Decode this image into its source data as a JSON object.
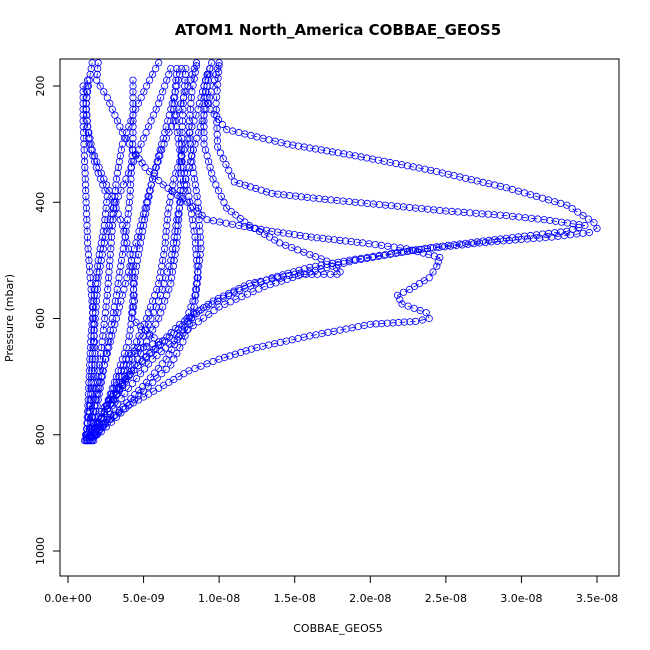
{
  "chart_data": {
    "type": "scatter",
    "title": "ATOM1 North_America COBBAE_GEOS5",
    "xlabel": "COBBAE_GEOS5",
    "ylabel": "Pressure (mbar)",
    "xlim": [
      0,
      3.6e-08
    ],
    "ylim": [
      1040,
      160
    ],
    "y_reversed": true,
    "x_ticks": [
      {
        "value": 0,
        "label": "0.0e+00"
      },
      {
        "value": 5e-09,
        "label": "5.0e-09"
      },
      {
        "value": 1e-08,
        "label": "1.0e-08"
      },
      {
        "value": 1.5e-08,
        "label": "1.5e-08"
      },
      {
        "value": 2e-08,
        "label": "2.0e-08"
      },
      {
        "value": 2.5e-08,
        "label": "2.5e-08"
      },
      {
        "value": 3e-08,
        "label": "3.0e-08"
      },
      {
        "value": 3.5e-08,
        "label": "3.5e-08"
      }
    ],
    "y_ticks": [
      {
        "value": 200,
        "label": "200"
      },
      {
        "value": 400,
        "label": "400"
      },
      {
        "value": 600,
        "label": "600"
      },
      {
        "value": 800,
        "label": "800"
      },
      {
        "value": 1000,
        "label": "1000"
      }
    ],
    "marker": "open-circle",
    "color": "#0000ff",
    "grid": false,
    "series": [
      {
        "x": [
          2e-09,
          1.9e-09,
          2.6e-09,
          3.1e-09,
          3.6e-09,
          4.3e-09,
          5.1e-09,
          6.3e-09,
          7.9e-09,
          9.2e-09,
          1.13e-08,
          1.35e-08,
          1.61e-08,
          1.95e-08,
          2.24e-08,
          2.46e-08,
          2.44e-08,
          2.39e-08,
          2.26e-08,
          2.18e-08,
          2.21e-08,
          2.37e-08,
          2.39e-08,
          2.3e-08,
          2e-08,
          1.6e-08,
          1.25e-08,
          1e-08,
          8e-09,
          6e-09,
          4e-09,
          2.4e-09,
          1.2e-09
        ],
        "y": [
          160,
          190,
          220,
          250,
          280,
          310,
          340,
          370,
          400,
          430,
          440,
          450,
          460,
          470,
          480,
          495,
          510,
          530,
          550,
          560,
          575,
          590,
          600,
          605,
          610,
          630,
          650,
          670,
          690,
          720,
          750,
          780,
          810
        ]
      },
      {
        "x": [
          9.5e-09,
          9e-09,
          9.4e-09,
          1.05e-08,
          1.45e-08,
          1.9e-08,
          2.4e-08,
          2.9e-08,
          3.3e-08,
          3.48e-08,
          3.5e-08,
          3.45e-08,
          3.2e-08,
          2.8e-08,
          2.3e-08,
          1.9e-08,
          1.6e-08,
          1.35e-08,
          1.1e-08,
          8.8e-09,
          7e-09,
          5.2e-09,
          3.8e-09,
          2.6e-09,
          1.4e-09
        ],
        "y": [
          160,
          200,
          240,
          275,
          300,
          320,
          345,
          375,
          405,
          435,
          445,
          452,
          460,
          468,
          482,
          498,
          512,
          530,
          555,
          585,
          625,
          665,
          705,
          755,
          810
        ]
      },
      {
        "x": [
          1e-08,
          9.8e-09,
          9.9e-09,
          1.1e-08,
          1.35e-08,
          1.7e-08,
          2.1e-08,
          2.5e-08,
          2.9e-08,
          3.15e-08,
          3.42e-08,
          3.3e-08,
          2.9e-08,
          2.4e-08,
          1.9e-08,
          1.6e-08,
          1.3e-08,
          1e-08,
          7.6e-09,
          5.6e-09,
          4e-09,
          2.8e-09,
          1.6e-09
        ],
        "y": [
          165,
          230,
          305,
          365,
          385,
          395,
          405,
          415,
          423,
          430,
          440,
          450,
          462,
          478,
          500,
          520,
          545,
          580,
          625,
          670,
          720,
          765,
          810
        ]
      },
      {
        "x": [
          9.4e-09,
          9e-09,
          9e-09,
          9.6e-09,
          1.05e-08,
          1.2e-08,
          1.4e-08,
          1.6e-08,
          1.75e-08,
          1.8e-08,
          1.78e-08,
          1.65e-08,
          1.5e-08,
          1.2e-08,
          9.6e-09,
          7.4e-09,
          5.4e-09,
          3.6e-09,
          2.2e-09,
          1.2e-09
        ],
        "y": [
          170,
          230,
          300,
          360,
          410,
          440,
          470,
          490,
          505,
          520,
          524,
          524,
          524,
          540,
          570,
          610,
          660,
          710,
          760,
          805
        ]
      },
      {
        "x": [
          7.2e-09,
          7e-09,
          7.4e-09,
          8e-09,
          8.4e-09,
          8.6e-09,
          8.3e-09,
          7.6e-09,
          6.8e-09,
          5.6e-09,
          4.4e-09,
          3.2e-09,
          2.2e-09,
          1.3e-09
        ],
        "y": [
          170,
          240,
          310,
          390,
          460,
          530,
          590,
          640,
          680,
          710,
          740,
          770,
          795,
          810
        ]
      },
      {
        "x": [
          8.5e-09,
          8.2e-09,
          8e-09,
          8.2e-09,
          8.6e-09,
          8.8e-09,
          8.4e-09,
          7.6e-09,
          6.5e-09,
          5.2e-09,
          3.9e-09,
          2.6e-09,
          1.5e-09
        ],
        "y": [
          165,
          210,
          270,
          330,
          400,
          480,
          560,
          620,
          670,
          710,
          745,
          780,
          810
        ]
      },
      {
        "x": [
          6.8e-09,
          6e-09,
          5e-09,
          4e-09,
          3e-09,
          2.4e-09,
          2e-09,
          1.8e-09,
          1.6e-09,
          1.5e-09,
          1.3e-09,
          1.2e-09
        ],
        "y": [
          170,
          230,
          290,
          350,
          410,
          470,
          530,
          600,
          670,
          730,
          780,
          810
        ]
      },
      {
        "x": [
          4.3e-09,
          4.3e-09,
          4.3e-09,
          4.2e-09,
          4.1e-09,
          3.9e-09,
          3.6e-09,
          3.2e-09,
          2.8e-09,
          2.4e-09,
          2e-09,
          1.7e-09,
          1.4e-09
        ],
        "y": [
          190,
          230,
          290,
          340,
          390,
          440,
          490,
          560,
          620,
          680,
          740,
          780,
          810
        ]
      },
      {
        "x": [
          1.3e-09,
          1.2e-09,
          1.4e-09,
          2e-09,
          2.6e-09,
          2.4e-09,
          2e-09,
          1.7e-09,
          1.5e-09,
          1.4e-09,
          1.3e-09,
          1.2e-09
        ],
        "y": [
          190,
          240,
          300,
          350,
          390,
          440,
          500,
          570,
          640,
          700,
          760,
          810
        ]
      },
      {
        "x": [
          1.6e-09,
          1.4e-09,
          1.2e-09,
          1.3e-09,
          1.6e-09,
          2.2e-09,
          2.9e-09,
          3.6e-09,
          4.2e-09,
          4.4e-09,
          4e-09,
          3.2e-09,
          2.4e-09,
          1.6e-09
        ],
        "y": [
          160,
          190,
          230,
          270,
          310,
          350,
          390,
          440,
          500,
          570,
          640,
          700,
          760,
          810
        ]
      },
      {
        "x": [
          6e-09,
          5.2e-09,
          4.3e-09,
          3.6e-09,
          3.2e-09,
          3e-09,
          2.8e-09,
          2.6e-09,
          2.3e-09,
          2e-09,
          1.7e-09,
          1.4e-09
        ],
        "y": [
          160,
          200,
          250,
          300,
          360,
          420,
          490,
          560,
          630,
          700,
          760,
          810
        ]
      },
      {
        "x": [
          8.5e-09,
          7.8e-09,
          7e-09,
          6.2e-09,
          5.6e-09,
          5.2e-09,
          4.8e-09,
          4.4e-09,
          4.2e-09,
          6e-09,
          4e-09,
          3.2e-09,
          2.4e-09,
          1.6e-09
        ],
        "y": [
          160,
          210,
          260,
          310,
          360,
          410,
          470,
          530,
          600,
          640,
          660,
          710,
          760,
          810
        ]
      },
      {
        "x": [
          1e-08,
          9.6e-09,
          9e-09,
          8.4e-09,
          7.8e-09,
          7.2e-09,
          6.8e-09,
          6e-09,
          4.8e-09,
          3.6e-09,
          2.6e-09,
          1.7e-09
        ],
        "y": [
          160,
          200,
          250,
          300,
          360,
          430,
          500,
          570,
          640,
          710,
          770,
          810
        ]
      },
      {
        "x": [
          7.5e-09,
          7e-09,
          6.4e-09,
          5.8e-09,
          5.2e-09,
          4.6e-09,
          4e-09,
          3.4e-09,
          2.8e-09,
          2.2e-09,
          1.7e-09,
          1.2e-09
        ],
        "y": [
          170,
          220,
          280,
          340,
          400,
          460,
          520,
          580,
          640,
          700,
          760,
          810
        ]
      },
      {
        "x": [
          9.2e-09,
          8.6e-09,
          7.8e-09,
          7e-09,
          6.6e-09,
          6.4e-09,
          6e-09,
          5.2e-09,
          4.2e-09,
          3.2e-09,
          2.2e-09,
          1.3e-09
        ],
        "y": [
          180,
          240,
          300,
          360,
          420,
          480,
          540,
          600,
          660,
          720,
          770,
          810
        ]
      },
      {
        "x": [
          7.8e-09,
          7.6e-09,
          7.5e-09,
          7.4e-09,
          7.2e-09,
          6.8e-09,
          6e-09,
          5e-09,
          4e-09,
          3e-09,
          2e-09,
          1.2e-09
        ],
        "y": [
          170,
          240,
          320,
          400,
          470,
          540,
          600,
          650,
          700,
          740,
          780,
          810
        ]
      },
      {
        "x": [
          1e-09,
          1e-09,
          1.1e-09,
          1.2e-09,
          1.3e-09,
          1.5e-09,
          1.7e-09,
          1.8e-09,
          1.6e-09,
          1.3e-09,
          1.1e-09
        ],
        "y": [
          200,
          260,
          330,
          400,
          470,
          540,
          610,
          670,
          730,
          780,
          810
        ]
      }
    ]
  }
}
